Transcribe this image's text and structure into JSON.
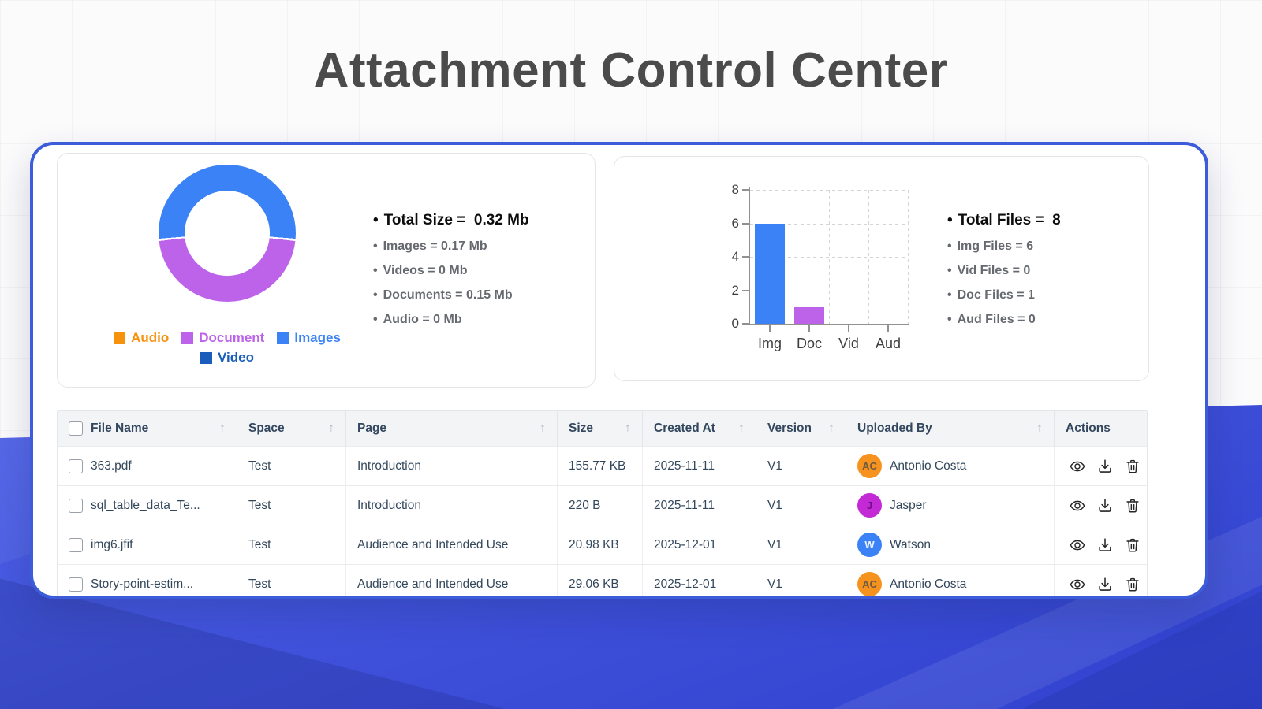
{
  "page": {
    "title": "Attachment Control Center"
  },
  "theme": {
    "card_border": "#3c5cda",
    "bottom_background": "#3f51da",
    "blue": "#3b82f6",
    "purple": "#bd63ea",
    "orange": "#f6920b",
    "navy": "#1a5dbb",
    "table_header_bg": "#f2f4f6",
    "text_dark": "#33475b"
  },
  "chart_data": [
    {
      "type": "pie",
      "subtype": "donut",
      "unit": "Mb",
      "segments": [
        {
          "label": "Images",
          "value": 0.17,
          "color": "#3b82f6"
        },
        {
          "label": "Document",
          "value": 0.15,
          "color": "#bd63ea"
        },
        {
          "label": "Audio",
          "value": 0,
          "color": "#f6920b"
        },
        {
          "label": "Video",
          "value": 0,
          "color": "#1a5dbb"
        }
      ],
      "legend": [
        {
          "label": "Audio",
          "color": "#f6920b"
        },
        {
          "label": "Document",
          "color": "#bd63ea"
        },
        {
          "label": "Images",
          "color": "#3b82f6"
        },
        {
          "label": "Video",
          "color": "#1a5dbb"
        }
      ],
      "layout": {
        "hole": 0.62,
        "largest_segment_centered_top": true,
        "legend_position": "bottom",
        "segment_gap_deg": 2
      }
    },
    {
      "type": "bar",
      "categories": [
        "Img",
        "Doc",
        "Vid",
        "Aud"
      ],
      "values": [
        6,
        1,
        0,
        0
      ],
      "bar_colors": [
        "#3b82f6",
        "#bd63ea",
        "#3b82f6",
        "#bd63ea"
      ],
      "title": "",
      "xlabel": "",
      "ylabel": "",
      "ylim": [
        0,
        8
      ],
      "yticks": [
        0,
        2,
        4,
        6,
        8
      ],
      "grid": "dashed"
    }
  ],
  "size_stats": {
    "total_label": "Total Size",
    "total_value": "0.32 Mb",
    "items": [
      {
        "label": "Images",
        "value": "0.17 Mb"
      },
      {
        "label": "Videos",
        "value": "0 Mb"
      },
      {
        "label": "Documents",
        "value": "0.15 Mb"
      },
      {
        "label": "Audio",
        "value": "0 Mb"
      }
    ]
  },
  "file_stats": {
    "total_label": "Total Files",
    "total_value": "8",
    "items": [
      {
        "label": "Img Files",
        "value": "6"
      },
      {
        "label": "Vid Files",
        "value": "0"
      },
      {
        "label": "Doc Files",
        "value": "1"
      },
      {
        "label": "Aud Files",
        "value": "0"
      }
    ]
  },
  "table": {
    "columns": [
      {
        "label": "File Name",
        "sortable": true,
        "checkbox": true
      },
      {
        "label": "Space",
        "sortable": true
      },
      {
        "label": "Page",
        "sortable": true
      },
      {
        "label": "Size",
        "sortable": true
      },
      {
        "label": "Created At",
        "sortable": true
      },
      {
        "label": "Version",
        "sortable": true
      },
      {
        "label": "Uploaded By",
        "sortable": true
      },
      {
        "label": "Actions",
        "sortable": false
      }
    ],
    "rows": [
      {
        "file_name": "363.pdf",
        "space": "Test",
        "page": "Introduction",
        "size": "155.77 KB",
        "created_at": "2025-11-11",
        "version": "V1",
        "uploaded_by": {
          "name": "Antonio Costa",
          "initials": "AC",
          "color": "#f6921e",
          "initials_color": "#6e5a41"
        },
        "actions": [
          "view",
          "download",
          "delete"
        ]
      },
      {
        "file_name": "sql_table_data_Te...",
        "space": "Test",
        "page": "Introduction",
        "size": "220 B",
        "created_at": "2025-11-11",
        "version": "V1",
        "uploaded_by": {
          "name": "Jasper",
          "initials": "J",
          "color": "#c32ad6",
          "initials_color": "#70108a"
        },
        "actions": [
          "view",
          "download",
          "delete"
        ]
      },
      {
        "file_name": "img6.jfif",
        "space": "Test",
        "page": "Audience and Intended Use",
        "size": "20.98 KB",
        "created_at": "2025-12-01",
        "version": "V1",
        "uploaded_by": {
          "name": "Watson",
          "initials": "W",
          "color": "#3b82f6",
          "initials_color": "#eaf2ff"
        },
        "actions": [
          "view",
          "download",
          "delete"
        ]
      },
      {
        "file_name": "Story-point-estim...",
        "space": "Test",
        "page": "Audience and Intended Use",
        "size": "29.06 KB",
        "created_at": "2025-12-01",
        "version": "V1",
        "uploaded_by": {
          "name": "Antonio Costa",
          "initials": "AC",
          "color": "#f6921e",
          "initials_color": "#6e5a41"
        },
        "actions": [
          "view",
          "download",
          "delete"
        ]
      }
    ]
  }
}
